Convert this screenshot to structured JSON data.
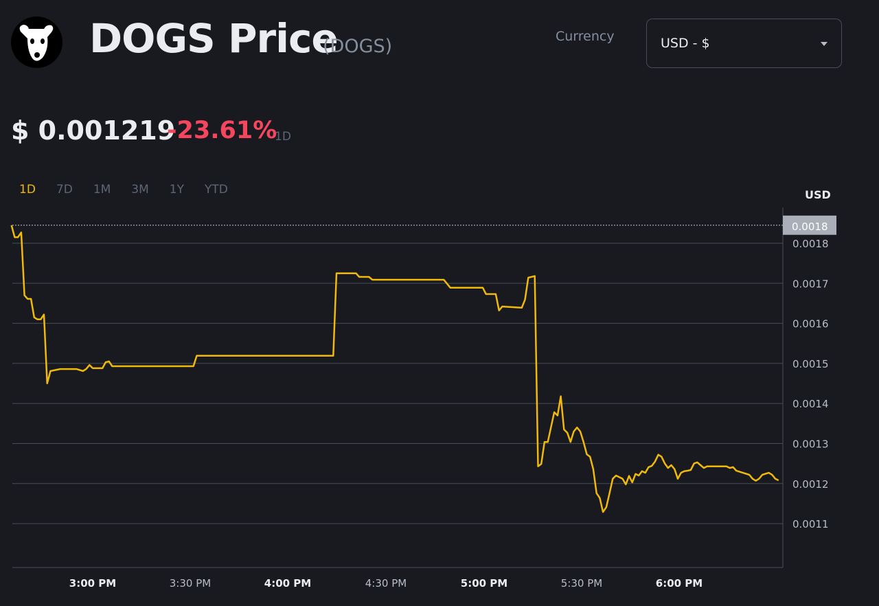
{
  "header": {
    "logo_icon": "dog-face-icon",
    "title": "DOGS Price",
    "symbol": "(DOGS)",
    "currency_label": "Currency",
    "currency_value": "USD - $"
  },
  "summary": {
    "price": "$ 0.001219",
    "change": "-23.61%",
    "change_color": "#f6465d",
    "period": "1D"
  },
  "tabs": [
    {
      "label": "1D",
      "active": true
    },
    {
      "label": "7D",
      "active": false
    },
    {
      "label": "1M",
      "active": false
    },
    {
      "label": "3M",
      "active": false
    },
    {
      "label": "1Y",
      "active": false
    },
    {
      "label": "YTD",
      "active": false
    }
  ],
  "chart_data": {
    "type": "line",
    "ylabel": "USD",
    "line_color": "#f0b90b",
    "grid": true,
    "ylim": [
      0.00102,
      0.00189
    ],
    "y_ticks": [
      "0.0018",
      "0.0017",
      "0.0016",
      "0.0015",
      "0.0014",
      "0.0013",
      "0.0012",
      "0.0011"
    ],
    "x_ticks": [
      "3:00 PM",
      "3:30 PM",
      "4:00 PM",
      "4:30 PM",
      "5:00 PM",
      "5:30 PM",
      "6:00 PM"
    ],
    "reference_line": {
      "label": "0.0018",
      "value": 0.001845
    },
    "points": [
      [
        "14:35",
        0.001845
      ],
      [
        "14:36",
        0.001815
      ],
      [
        "14:37",
        0.001815
      ],
      [
        "14:38",
        0.001827
      ],
      [
        "14:39",
        0.00167
      ],
      [
        "14:40",
        0.001661
      ],
      [
        "14:41",
        0.001661
      ],
      [
        "14:42",
        0.001615
      ],
      [
        "14:43",
        0.00161
      ],
      [
        "14:44",
        0.00161
      ],
      [
        "14:45",
        0.001622
      ],
      [
        "14:46",
        0.00145
      ],
      [
        "14:47",
        0.001481
      ],
      [
        "14:50",
        0.001486
      ],
      [
        "14:55",
        0.001486
      ],
      [
        "14:57",
        0.001481
      ],
      [
        "14:58",
        0.001486
      ],
      [
        "14:59",
        0.001496
      ],
      [
        "15:00",
        0.001488
      ],
      [
        "15:03",
        0.001488
      ],
      [
        "15:04",
        0.001503
      ],
      [
        "15:05",
        0.001505
      ],
      [
        "15:06",
        0.001493
      ],
      [
        "15:31",
        0.001493
      ],
      [
        "15:32",
        0.001519
      ],
      [
        "16:14",
        0.001519
      ],
      [
        "16:15",
        0.001725
      ],
      [
        "16:21",
        0.001725
      ],
      [
        "16:22",
        0.001716
      ],
      [
        "16:25",
        0.001716
      ],
      [
        "16:26",
        0.001709
      ],
      [
        "16:48",
        0.001709
      ],
      [
        "16:50",
        0.001689
      ],
      [
        "17:00",
        0.001689
      ],
      [
        "17:01",
        0.001673
      ],
      [
        "17:04",
        0.001673
      ],
      [
        "17:05",
        0.001632
      ],
      [
        "17:06",
        0.001642
      ],
      [
        "17:12",
        0.001639
      ],
      [
        "17:13",
        0.001659
      ],
      [
        "17:14",
        0.001714
      ],
      [
        "17:16",
        0.001718
      ],
      [
        "17:17",
        0.001243
      ],
      [
        "17:18",
        0.001249
      ],
      [
        "17:19",
        0.001304
      ],
      [
        "17:20",
        0.001304
      ],
      [
        "17:22",
        0.001378
      ],
      [
        "17:23",
        0.00137
      ],
      [
        "17:24",
        0.001418
      ],
      [
        "17:25",
        0.001335
      ],
      [
        "17:26",
        0.001327
      ],
      [
        "17:27",
        0.001304
      ],
      [
        "17:28",
        0.00133
      ],
      [
        "17:29",
        0.00134
      ],
      [
        "17:30",
        0.00133
      ],
      [
        "17:31",
        0.001304
      ],
      [
        "17:32",
        0.001273
      ],
      [
        "17:33",
        0.001267
      ],
      [
        "17:34",
        0.001236
      ],
      [
        "17:35",
        0.001176
      ],
      [
        "17:36",
        0.001164
      ],
      [
        "17:37",
        0.001129
      ],
      [
        "17:38",
        0.001141
      ],
      [
        "17:39",
        0.001176
      ],
      [
        "17:40",
        0.001212
      ],
      [
        "17:41",
        0.00122
      ],
      [
        "17:43",
        0.001212
      ],
      [
        "17:44",
        0.001198
      ],
      [
        "17:45",
        0.001219
      ],
      [
        "17:46",
        0.001203
      ],
      [
        "17:47",
        0.001224
      ],
      [
        "17:48",
        0.00122
      ],
      [
        "17:49",
        0.001231
      ],
      [
        "17:50",
        0.001227
      ],
      [
        "17:51",
        0.001241
      ],
      [
        "17:52",
        0.001244
      ],
      [
        "17:53",
        0.001255
      ],
      [
        "17:54",
        0.001272
      ],
      [
        "17:55",
        0.001267
      ],
      [
        "17:56",
        0.00125
      ],
      [
        "17:57",
        0.001239
      ],
      [
        "17:58",
        0.001246
      ],
      [
        "17:59",
        0.001236
      ],
      [
        "18:00",
        0.001212
      ],
      [
        "18:01",
        0.001227
      ],
      [
        "18:02",
        0.001231
      ],
      [
        "18:03",
        0.001232
      ],
      [
        "18:04",
        0.001234
      ],
      [
        "18:05",
        0.00125
      ],
      [
        "18:06",
        0.001253
      ],
      [
        "18:07",
        0.001246
      ],
      [
        "18:08",
        0.001239
      ],
      [
        "18:09",
        0.001243
      ],
      [
        "18:15",
        0.001243
      ],
      [
        "18:16",
        0.001239
      ],
      [
        "18:17",
        0.001241
      ],
      [
        "18:18",
        0.001232
      ],
      [
        "18:20",
        0.001227
      ],
      [
        "18:22",
        0.001222
      ],
      [
        "18:23",
        0.001212
      ],
      [
        "18:24",
        0.001207
      ],
      [
        "18:25",
        0.001212
      ],
      [
        "18:26",
        0.001222
      ],
      [
        "18:28",
        0.001227
      ],
      [
        "18:29",
        0.001222
      ],
      [
        "18:30",
        0.001212
      ],
      [
        "18:31",
        0.001208
      ]
    ]
  }
}
